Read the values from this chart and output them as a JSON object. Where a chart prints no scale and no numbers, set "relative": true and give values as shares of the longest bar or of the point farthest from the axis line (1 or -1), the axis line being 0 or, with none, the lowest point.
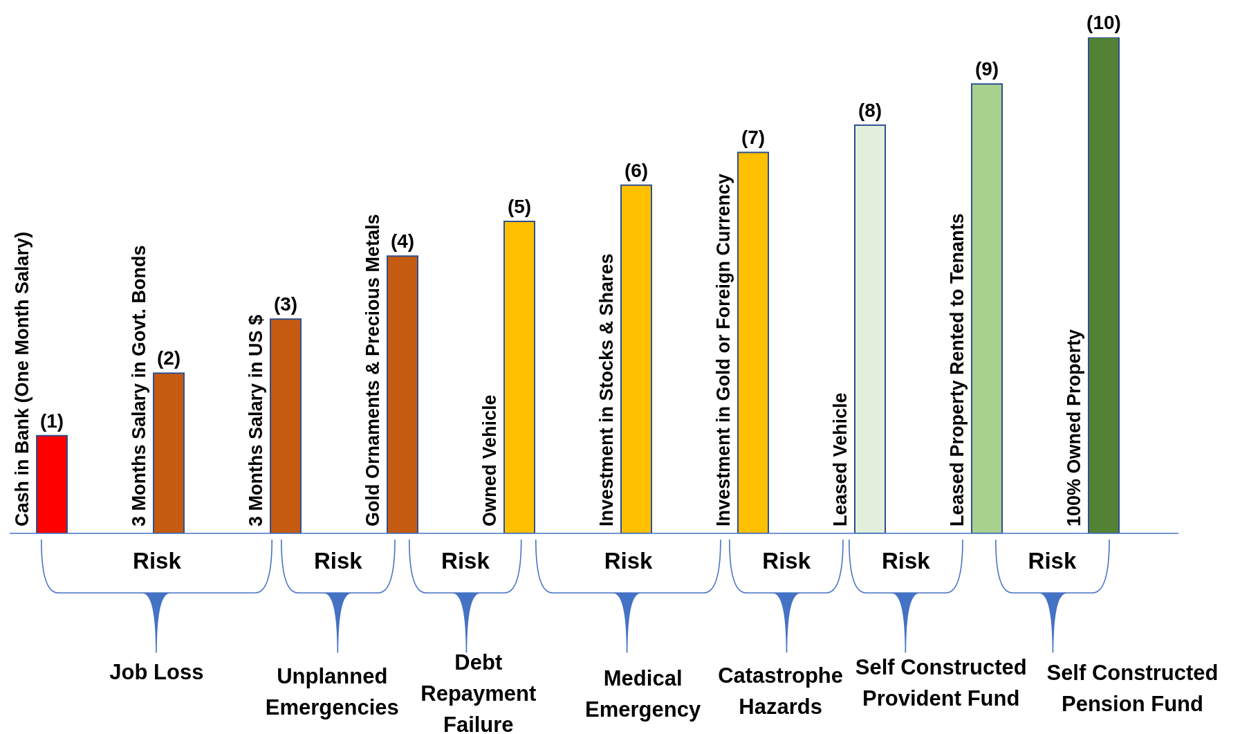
{
  "chart_data": {
    "type": "bar",
    "relative": true,
    "categories": [
      "Cash in Bank (One Month Salary)",
      "3 Months  Salary in Govt.  Bonds",
      "3 Months  Salary in US $",
      "Gold Ornaments & Precious Metals",
      "Owned Vehicle",
      "Investment in Stocks & Shares",
      "Investment in Gold or Foreign Currency",
      "Leased Vehicle",
      "Leased Property Rented to Tenants",
      "100% Owned Property"
    ],
    "values": [
      0.197,
      0.323,
      0.432,
      0.559,
      0.629,
      0.702,
      0.768,
      0.823,
      0.906,
      1
    ],
    "colors": [
      "#ff0000",
      "#c55a11",
      "#c55a11",
      "#c55a11",
      "#ffc000",
      "#ffc000",
      "#ffc000",
      "#e2efda",
      "#a9d18e",
      "#548235"
    ],
    "annotations": [
      "(1)",
      "(2)",
      "(3)",
      "(4)",
      "(5)",
      "(6)",
      "(7)",
      "(8)",
      "(9)",
      "(10)",
      "Risk",
      "Risk",
      "Risk",
      "Risk",
      "Risk",
      "Risk",
      "Risk",
      "Job Loss",
      "Unplanned Emergencies",
      "Debt Repayment Failure",
      "Medical Emergency",
      "Catastrophe Hazards",
      "Self Constructed Provident Fund",
      "Self Constructed Pension Fund"
    ]
  }
}
